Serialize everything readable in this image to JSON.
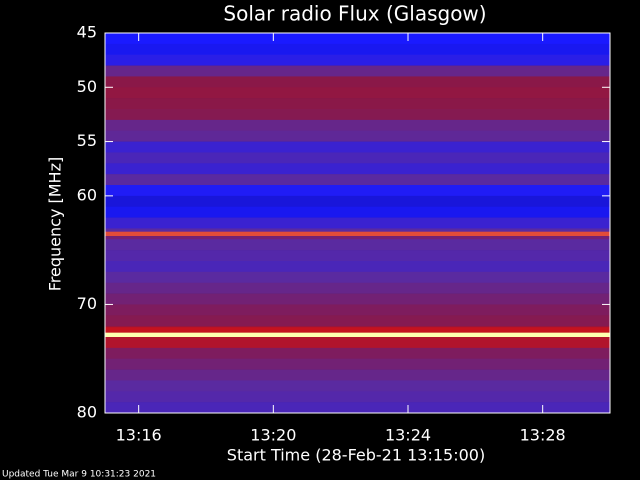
{
  "chart_data": {
    "type": "heatmap",
    "title": "Solar radio Flux (Glasgow)",
    "ylabel": "Frequency [MHz]",
    "xlabel": "Start Time (28-Feb-21 13:15:00)",
    "footer": "Updated Tue Mar  9 10:31:23 2021",
    "xlim": [
      0,
      15
    ],
    "xticks": [
      {
        "value": 1,
        "label": "13:16"
      },
      {
        "value": 5,
        "label": "13:20"
      },
      {
        "value": 9,
        "label": "13:24"
      },
      {
        "value": 13,
        "label": "13:28"
      }
    ],
    "ylim": [
      45,
      80
    ],
    "yticks": [
      45,
      50,
      55,
      60,
      70,
      80
    ],
    "ybins": [
      45,
      46,
      47,
      48,
      49,
      50,
      51,
      52,
      53,
      54,
      55,
      56,
      57,
      58,
      59,
      60,
      61,
      62,
      63,
      63.3,
      63.7,
      64,
      65,
      66,
      67,
      68,
      69,
      70,
      71,
      72,
      72.1,
      72.6,
      73,
      74,
      75,
      76,
      77,
      78,
      79,
      80
    ],
    "values": [
      0.2,
      0.18,
      0.25,
      0.45,
      0.6,
      0.62,
      0.6,
      0.58,
      0.45,
      0.42,
      0.3,
      0.35,
      0.3,
      0.4,
      0.22,
      0.15,
      0.18,
      0.3,
      0.4,
      0.85,
      0.5,
      0.4,
      0.38,
      0.35,
      0.4,
      0.45,
      0.5,
      0.55,
      0.58,
      0.65,
      0.75,
      1.0,
      0.7,
      0.55,
      0.5,
      0.45,
      0.4,
      0.38,
      0.35
    ],
    "colormap": [
      {
        "value": 0,
        "color": "#14086a"
      },
      {
        "value": 0.2,
        "color": "#1a1aff"
      },
      {
        "value": 0.4,
        "color": "#5a2aa0"
      },
      {
        "value": 0.6,
        "color": "#8a1848"
      },
      {
        "value": 0.8,
        "color": "#d81010"
      },
      {
        "value": 1.0,
        "color": "#ffffb0"
      }
    ]
  }
}
